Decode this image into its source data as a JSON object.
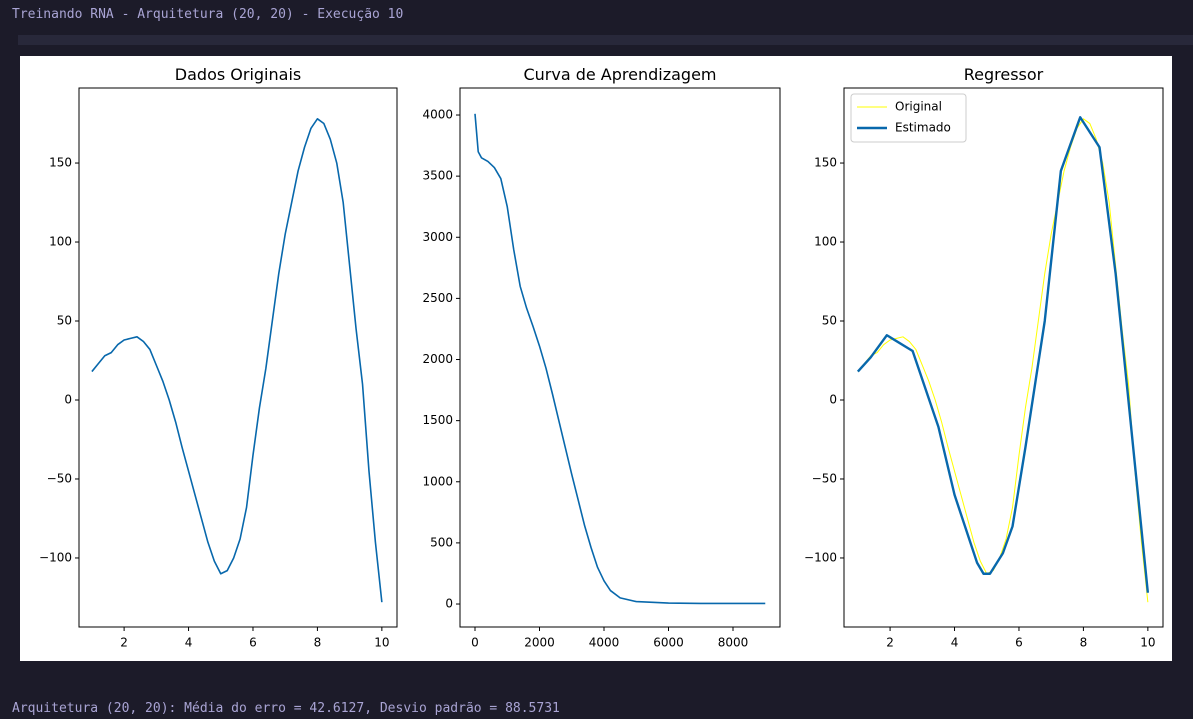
{
  "header": {
    "title": "Treinando RNA - Arquitetura (20, 20) - Execução 10"
  },
  "footer": {
    "text": "Arquitetura (20, 20): Média do erro = 42.6127, Desvio padrão = 88.5731"
  },
  "chart_data": [
    {
      "type": "line",
      "title": "Dados Originais",
      "xlim": [
        0.6,
        10.47
      ],
      "ylim": [
        -143.7,
        197.5
      ],
      "xticks": [
        2,
        4,
        6,
        8,
        10
      ],
      "yticks": [
        {
          "value": -100,
          "label": "−100"
        },
        {
          "value": -50,
          "label": "−50"
        },
        0,
        50,
        100,
        150
      ],
      "series": [
        {
          "color": "#0868ac",
          "linewidth": 1.6,
          "x": [
            1,
            1.2,
            1.4,
            1.6,
            1.8,
            2,
            2.2,
            2.4,
            2.6,
            2.8,
            3,
            3.2,
            3.4,
            3.6,
            3.8,
            4,
            4.2,
            4.4,
            4.6,
            4.8,
            5,
            5.2,
            5.4,
            5.6,
            5.8,
            6,
            6.2,
            6.4,
            6.6,
            6.8,
            7,
            7.2,
            7.4,
            7.6,
            7.8,
            8,
            8.2,
            8.4,
            8.6,
            8.8,
            9,
            9.2,
            9.4,
            9.6,
            9.8,
            10
          ],
          "values": [
            18,
            23,
            28,
            30,
            35,
            38,
            39,
            40,
            37,
            32,
            22,
            12,
            0,
            -14,
            -30,
            -45,
            -60,
            -75,
            -90,
            -102,
            -110,
            -108,
            -100,
            -88,
            -68,
            -35,
            -5,
            20,
            50,
            80,
            105,
            125,
            145,
            160,
            172,
            178,
            175,
            165,
            150,
            125,
            85,
            45,
            10,
            -45,
            -90,
            -128
          ]
        }
      ]
    },
    {
      "type": "line",
      "title": "Curva de Aprendizagem",
      "xlim": [
        -465,
        9457
      ],
      "ylim": [
        -188,
        4221
      ],
      "xticks": [
        0,
        2000,
        4000,
        6000,
        8000
      ],
      "yticks": [
        0,
        500,
        1000,
        1500,
        2000,
        2500,
        3000,
        3500,
        4000
      ],
      "series": [
        {
          "color": "#0868ac",
          "linewidth": 1.6,
          "x": [
            0,
            100,
            200,
            400,
            600,
            800,
            1000,
            1200,
            1400,
            1600,
            1800,
            2000,
            2200,
            2400,
            2600,
            2800,
            3000,
            3200,
            3400,
            3600,
            3800,
            4000,
            4200,
            4500,
            5000,
            6000,
            7000,
            8000,
            9000
          ],
          "values": [
            4010,
            3700,
            3650,
            3620,
            3570,
            3480,
            3250,
            2900,
            2600,
            2420,
            2270,
            2110,
            1930,
            1720,
            1500,
            1280,
            1060,
            850,
            640,
            460,
            300,
            190,
            110,
            50,
            20,
            8,
            5,
            5,
            5
          ]
        }
      ]
    },
    {
      "type": "line",
      "title": "Regressor",
      "legend": "upper left",
      "xlim": [
        0.57,
        10.47
      ],
      "ylim": [
        -143.7,
        197.5
      ],
      "xticks": [
        2,
        4,
        6,
        8,
        10
      ],
      "yticks": [
        {
          "value": -100,
          "label": "−100"
        },
        {
          "value": -50,
          "label": "−50"
        },
        0,
        50,
        100,
        150
      ],
      "series": [
        {
          "name": "Original",
          "color": "#ffff00",
          "linewidth": 1,
          "x": [
            1,
            1.2,
            1.4,
            1.6,
            1.8,
            2,
            2.2,
            2.4,
            2.6,
            2.8,
            3,
            3.2,
            3.4,
            3.6,
            3.8,
            4,
            4.2,
            4.4,
            4.6,
            4.8,
            5,
            5.2,
            5.4,
            5.6,
            5.8,
            6,
            6.2,
            6.4,
            6.6,
            6.8,
            7,
            7.2,
            7.4,
            7.6,
            7.8,
            8,
            8.2,
            8.4,
            8.6,
            8.8,
            9,
            9.2,
            9.4,
            9.6,
            9.8,
            10
          ],
          "values": [
            18,
            23,
            28,
            30,
            35,
            38,
            39,
            40,
            37,
            32,
            22,
            12,
            0,
            -14,
            -30,
            -45,
            -60,
            -75,
            -90,
            -102,
            -110,
            -108,
            -100,
            -88,
            -68,
            -35,
            -5,
            20,
            50,
            80,
            105,
            125,
            145,
            160,
            172,
            178,
            175,
            165,
            150,
            125,
            85,
            45,
            10,
            -45,
            -90,
            -128
          ]
        },
        {
          "name": "Estimado",
          "color": "#0868ac",
          "linewidth": 2.4,
          "x": [
            1,
            1.4,
            1.9,
            2.7,
            3.5,
            4,
            4.7,
            4.9,
            5.1,
            5.5,
            5.8,
            6.2,
            6.8,
            7.3,
            7.9,
            8.5,
            9,
            10
          ],
          "values": [
            18,
            27,
            41,
            31,
            -17,
            -60,
            -103,
            -110,
            -110,
            -97,
            -80,
            -30,
            50,
            145,
            179,
            160,
            80,
            -122
          ]
        }
      ]
    }
  ]
}
